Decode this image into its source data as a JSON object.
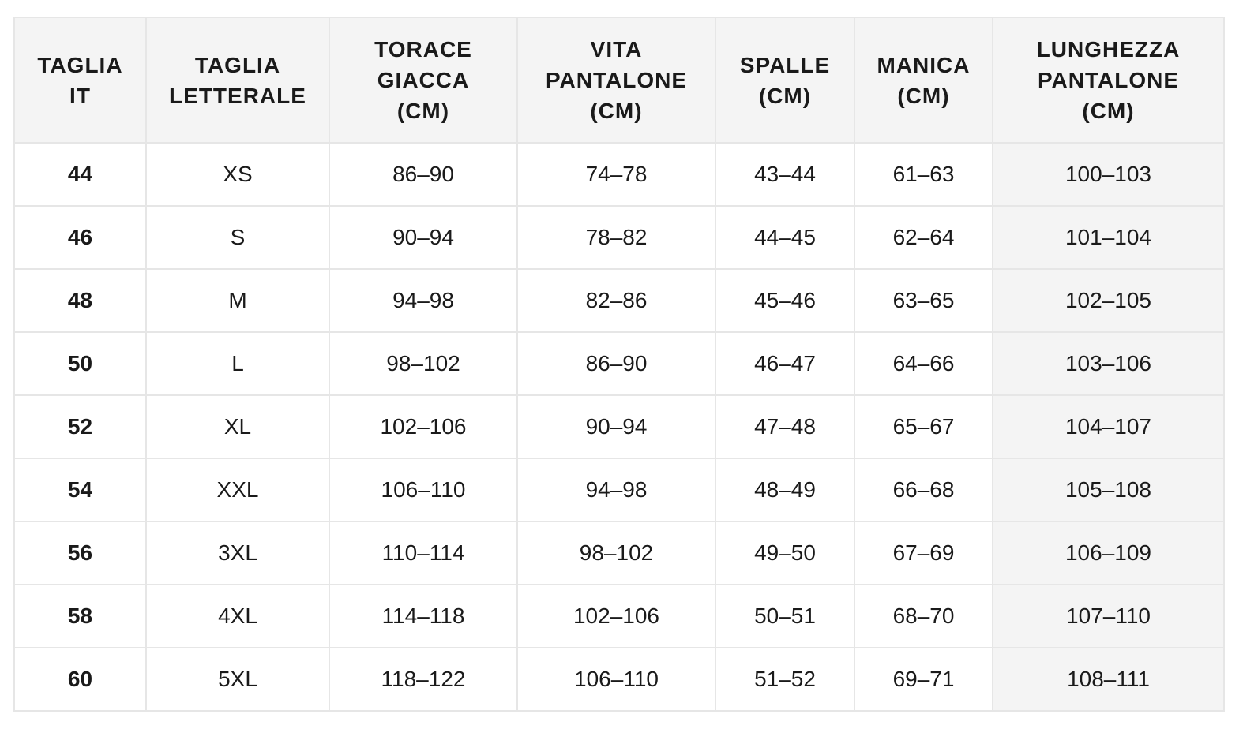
{
  "table": {
    "header": [
      [
        "TAGLIA",
        "IT"
      ],
      [
        "TAGLIA",
        "LETTERALE"
      ],
      [
        "TORACE",
        "GIACCA",
        "(CM)"
      ],
      [
        "VITA",
        "PANTALONE",
        "(CM)"
      ],
      [
        "SPALLE",
        "(CM)"
      ],
      [
        "MANICA",
        "(CM)"
      ],
      [
        "LUNGHEZZA",
        "PANTALONE",
        "(CM)"
      ]
    ],
    "rows": [
      [
        "44",
        "XS",
        "86–90",
        "74–78",
        "43–44",
        "61–63",
        "100–103"
      ],
      [
        "46",
        "S",
        "90–94",
        "78–82",
        "44–45",
        "62–64",
        "101–104"
      ],
      [
        "48",
        "M",
        "94–98",
        "82–86",
        "45–46",
        "63–65",
        "102–105"
      ],
      [
        "50",
        "L",
        "98–102",
        "86–90",
        "46–47",
        "64–66",
        "103–106"
      ],
      [
        "52",
        "XL",
        "102–106",
        "90–94",
        "47–48",
        "65–67",
        "104–107"
      ],
      [
        "54",
        "XXL",
        "106–110",
        "94–98",
        "48–49",
        "66–68",
        "105–108"
      ],
      [
        "56",
        "3XL",
        "110–114",
        "98–102",
        "49–50",
        "67–69",
        "106–109"
      ],
      [
        "58",
        "4XL",
        "114–118",
        "102–106",
        "50–51",
        "68–70",
        "107–110"
      ],
      [
        "60",
        "5XL",
        "118–122",
        "106–110",
        "51–52",
        "69–71",
        "108–111"
      ]
    ]
  }
}
